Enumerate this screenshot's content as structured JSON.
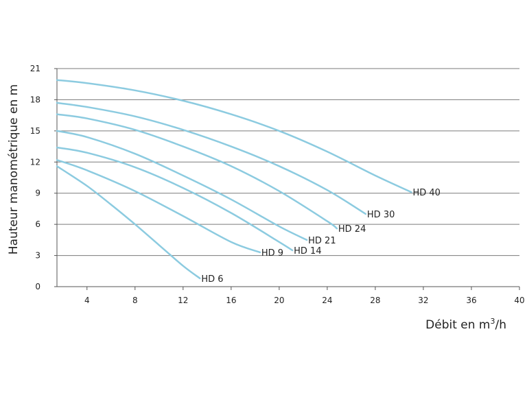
{
  "chart_data": {
    "type": "line",
    "title": "",
    "xlabel": "Débit en m",
    "xlabel_sup": "3",
    "xlabel_suffix": "/h",
    "ylabel": "Hauteur manométrique en m",
    "xlim": [
      1.5,
      40
    ],
    "ylim": [
      0,
      21
    ],
    "x_ticks": [
      4,
      8,
      12,
      16,
      20,
      24,
      28,
      32,
      36,
      40
    ],
    "y_ticks": [
      0,
      3,
      6,
      9,
      12,
      15,
      18,
      21
    ],
    "grid": "horizontal",
    "legend": "inline labels at curve ends",
    "line_color": "#8ccbe0",
    "series": [
      {
        "name": "HD 6",
        "x": [
          1.5,
          4,
          6,
          8,
          10,
          12,
          13.4
        ],
        "y": [
          11.6,
          9.7,
          7.9,
          6.0,
          4.0,
          2.0,
          0.8
        ]
      },
      {
        "name": "HD 9",
        "x": [
          1.5,
          4,
          8,
          12,
          16,
          18.4
        ],
        "y": [
          12.2,
          11.2,
          9.2,
          6.8,
          4.3,
          3.3
        ]
      },
      {
        "name": "HD 14",
        "x": [
          1.5,
          4,
          8,
          12,
          16,
          20,
          21.1
        ],
        "y": [
          13.4,
          12.9,
          11.5,
          9.5,
          7.1,
          4.3,
          3.5
        ]
      },
      {
        "name": "HD 21",
        "x": [
          1.5,
          4,
          8,
          12,
          16,
          20,
          22.3
        ],
        "y": [
          15.0,
          14.4,
          12.8,
          10.7,
          8.4,
          5.8,
          4.5
        ]
      },
      {
        "name": "HD 24",
        "x": [
          1.5,
          4,
          8,
          12,
          16,
          20,
          24,
          24.8
        ],
        "y": [
          16.6,
          16.2,
          15.1,
          13.5,
          11.6,
          9.2,
          6.3,
          5.6
        ]
      },
      {
        "name": "HD 30",
        "x": [
          1.5,
          4,
          8,
          12,
          16,
          20,
          24,
          27.2
        ],
        "y": [
          17.7,
          17.3,
          16.4,
          15.1,
          13.5,
          11.6,
          9.3,
          7.0
        ]
      },
      {
        "name": "HD 40",
        "x": [
          1.5,
          4,
          8,
          12,
          16,
          20,
          24,
          28,
          31
        ],
        "y": [
          19.9,
          19.6,
          18.9,
          17.9,
          16.6,
          15.0,
          13.0,
          10.7,
          9.1
        ]
      }
    ]
  }
}
